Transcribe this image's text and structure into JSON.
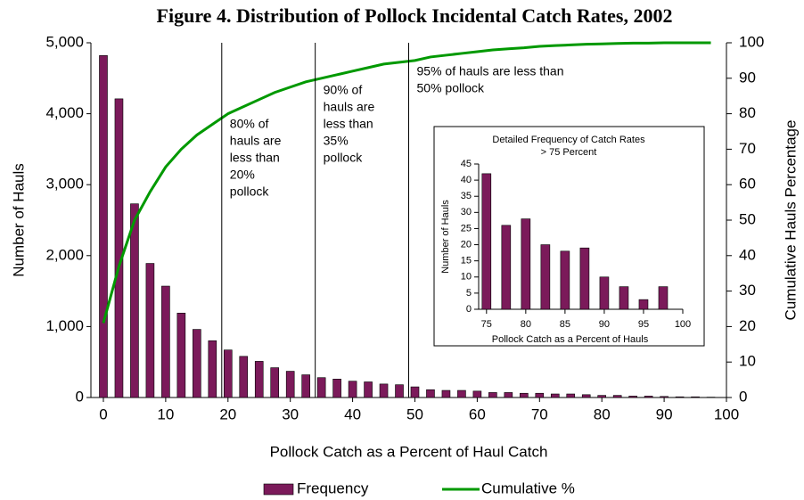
{
  "chart_data": [
    {
      "type": "bar",
      "title": "Figure 4. Distribution of Pollock Incidental Catch Rates, 2002",
      "xlabel": "Pollock Catch as a Percent of Haul Catch",
      "ylabel": "Number of Hauls",
      "y2label": "Cumulative Hauls Percentage",
      "x": [
        0,
        2.5,
        5,
        7.5,
        10,
        12.5,
        15,
        17.5,
        20,
        22.5,
        25,
        27.5,
        30,
        32.5,
        35,
        37.5,
        40,
        42.5,
        45,
        47.5,
        50,
        52.5,
        55,
        57.5,
        60,
        62.5,
        65,
        67.5,
        70,
        72.5,
        75,
        77.5,
        80,
        82.5,
        85,
        87.5,
        90,
        92.5,
        95,
        97.5
      ],
      "series": [
        {
          "name": "Frequency",
          "color": "#7b1a5a",
          "values": [
            4820,
            4210,
            2730,
            1890,
            1570,
            1190,
            960,
            800,
            670,
            580,
            510,
            420,
            370,
            320,
            280,
            260,
            230,
            220,
            190,
            180,
            150,
            110,
            100,
            100,
            90,
            70,
            70,
            60,
            60,
            50,
            50,
            40,
            30,
            30,
            20,
            20,
            15,
            10,
            10,
            5
          ]
        },
        {
          "name": "Cumulative %",
          "color": "#009900",
          "axis": "y2",
          "type": "line",
          "values": [
            21,
            37,
            50,
            58,
            65,
            70,
            74,
            77,
            80,
            82,
            84,
            86,
            87.5,
            89,
            90,
            91,
            92,
            93,
            94,
            94.5,
            95,
            96,
            96.5,
            97,
            97.5,
            98,
            98.3,
            98.6,
            99,
            99.2,
            99.4,
            99.6,
            99.7,
            99.8,
            99.9,
            99.9,
            100,
            100,
            100,
            100
          ]
        }
      ],
      "xlim": [
        -2,
        100
      ],
      "xticks": [
        0,
        10,
        20,
        30,
        40,
        50,
        60,
        70,
        80,
        90,
        100
      ],
      "ylim": [
        0,
        5000
      ],
      "yticks": [
        0,
        {
          "value": 1000,
          "label": "1,000"
        },
        {
          "value": 2000,
          "label": "2,000"
        },
        {
          "value": 3000,
          "label": "3,000"
        },
        {
          "value": 4000,
          "label": "4,000"
        },
        {
          "value": 5000,
          "label": "5,000"
        }
      ],
      "y2lim": [
        0,
        100
      ],
      "y2ticks": [
        0,
        10,
        20,
        30,
        40,
        50,
        60,
        70,
        80,
        90,
        100
      ],
      "legend": "bottom",
      "annotations": [
        {
          "x": 19,
          "text": [
            "80% of",
            "hauls are",
            "less than",
            "20%",
            "pollock"
          ]
        },
        {
          "x": 34,
          "text": [
            "90% of",
            "hauls are",
            "less than",
            "35%",
            "pollock"
          ]
        },
        {
          "x": 49,
          "text": [
            "95% of hauls are less than",
            "50% pollock"
          ]
        }
      ]
    },
    {
      "type": "bar",
      "title": [
        "Detailed Frequency of Catch Rates",
        "> 75 Percent"
      ],
      "xlabel": "Pollock Catch as a Percent of Hauls",
      "ylabel": "Number of Hauls",
      "x": [
        75,
        77.5,
        80,
        82.5,
        85,
        87.5,
        90,
        92.5,
        95,
        97.5
      ],
      "values": [
        42,
        26,
        28,
        20,
        18,
        19,
        10,
        7,
        3,
        7
      ],
      "color": "#7b1a5a",
      "xlim": [
        74,
        100
      ],
      "xticks": [
        75,
        80,
        85,
        90,
        95,
        100
      ],
      "ylim": [
        0,
        45
      ],
      "yticks": [
        0,
        5,
        10,
        15,
        20,
        25,
        30,
        35,
        40,
        45
      ]
    }
  ]
}
